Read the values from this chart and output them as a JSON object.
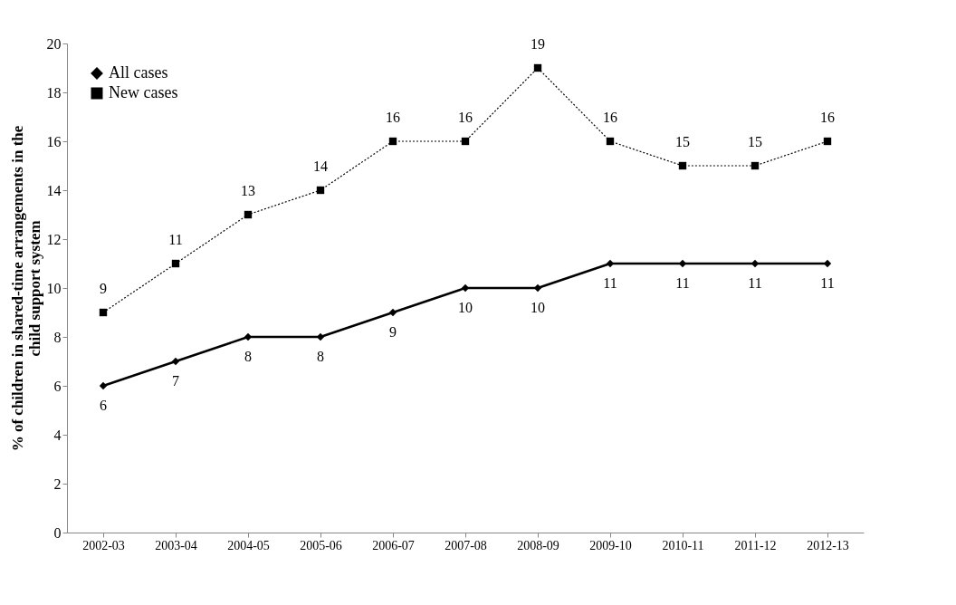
{
  "chart_data": {
    "type": "line",
    "ylabel": "% of children in shared-time arrangements in the\nchild support system",
    "categories": [
      "2002-03",
      "2003-04",
      "2004-05",
      "2005-06",
      "2006-07",
      "2007-08",
      "2008-09",
      "2009-10",
      "2010-11",
      "2011-12",
      "2012-13"
    ],
    "series": [
      {
        "name": "All cases",
        "color": "#000000",
        "marker": "diamond",
        "line_style": "solid",
        "values": [
          6,
          7,
          8,
          8,
          9,
          10,
          10,
          11,
          11,
          11,
          11
        ]
      },
      {
        "name": "New cases",
        "color": "#000000",
        "marker": "square",
        "line_style": "dotted",
        "values": [
          9,
          11,
          13,
          14,
          16,
          16,
          19,
          16,
          15,
          15,
          16
        ]
      }
    ],
    "ylim": [
      0,
      20
    ],
    "yticks": [
      0,
      2,
      4,
      6,
      8,
      10,
      12,
      14,
      16,
      18,
      20
    ],
    "grid": false,
    "legend": "top left",
    "data_labels": true
  }
}
